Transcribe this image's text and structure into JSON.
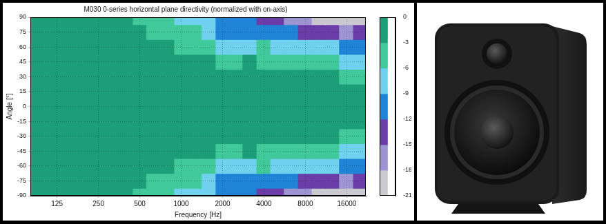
{
  "chart_data": {
    "type": "heatmap",
    "title": "M030 0-series horizontal plane directivity (normalized with on-axis)",
    "x_label": "Frequency [Hz]",
    "y_label": "Angle [°]",
    "log": "x",
    "grid": true,
    "xlim": [
      80,
      22000
    ],
    "xticks": [
      125,
      250,
      500,
      1000,
      2000,
      4000,
      8000,
      16000
    ],
    "ylim": [
      -90,
      90
    ],
    "yticks": [
      -90,
      -75,
      -60,
      -45,
      -30,
      -15,
      0,
      15,
      30,
      45,
      60,
      75,
      90
    ],
    "cells": {
      "frequencies": [
        80,
        100,
        125,
        160,
        200,
        250,
        315,
        400,
        500,
        630,
        800,
        1000,
        1250,
        1600,
        2000,
        2500,
        3150,
        4000,
        5000,
        6300,
        8000,
        10000,
        12500,
        16000,
        20000
      ],
      "angles": [
        -90,
        -75,
        -60,
        -45,
        -30,
        -15,
        0,
        15,
        30,
        45,
        60,
        75,
        90
      ],
      "values": [
        [
          -1.0,
          -1.2,
          -1.5,
          -1.7,
          -2.0,
          -2.2,
          -2.5,
          -2.8,
          -3.2,
          -4.0,
          -5.0,
          -6.5,
          -7.5,
          -8.5,
          -11.0,
          -11.5,
          -11.8,
          -12.5,
          -13.5,
          -15.5,
          -16.5,
          -18.0,
          -19.5,
          -20.5,
          -19.0
        ],
        [
          -0.8,
          -0.8,
          -1.0,
          -1.0,
          -1.2,
          -1.5,
          -1.8,
          -2.2,
          -2.8,
          -3.2,
          -4.0,
          -4.5,
          -5.5,
          -6.5,
          -9.5,
          -10.0,
          -9.5,
          -9.2,
          -10.0,
          -11.0,
          -12.0,
          -13.0,
          -14.0,
          -15.5,
          -13.5
        ],
        [
          -0.5,
          -0.5,
          -0.5,
          -0.6,
          -0.7,
          -0.8,
          -1.0,
          -1.2,
          -1.5,
          -2.0,
          -2.5,
          -3.2,
          -3.8,
          -4.5,
          -6.2,
          -6.5,
          -6.0,
          -5.8,
          -6.2,
          -6.5,
          -7.0,
          -7.5,
          -8.5,
          -9.5,
          -9.0
        ],
        [
          -0.3,
          -0.3,
          -0.3,
          -0.3,
          -0.4,
          -0.4,
          -0.5,
          -0.6,
          -0.8,
          -1.0,
          -1.2,
          -1.5,
          -2.0,
          -2.5,
          -3.2,
          -3.5,
          -2.8,
          -3.2,
          -3.5,
          -3.8,
          -4.2,
          -4.5,
          -5.0,
          -6.2,
          -6.2
        ],
        [
          -0.1,
          -0.1,
          -0.1,
          -0.1,
          -0.2,
          -0.2,
          -0.2,
          -0.3,
          -0.3,
          -0.4,
          -0.5,
          -0.6,
          -0.8,
          -1.0,
          -1.2,
          -1.3,
          -1.2,
          -1.4,
          -1.6,
          -1.8,
          -2.0,
          -2.3,
          -2.6,
          -3.2,
          -3.2
        ],
        [
          0,
          0,
          0,
          0,
          0,
          0,
          -0.1,
          -0.1,
          -0.1,
          -0.1,
          -0.1,
          -0.2,
          -0.2,
          -0.3,
          -0.3,
          -0.3,
          -0.3,
          -0.4,
          -0.4,
          -0.5,
          -0.5,
          -0.6,
          -0.7,
          -0.8,
          -0.8
        ],
        [
          0,
          0,
          0,
          0,
          0,
          0,
          0,
          0,
          0,
          0,
          0,
          0,
          0,
          0,
          0,
          0,
          0,
          0,
          0,
          0,
          0,
          0,
          0,
          0,
          0
        ],
        [
          0,
          0,
          0,
          0,
          0,
          0,
          -0.1,
          -0.1,
          -0.1,
          -0.1,
          -0.1,
          -0.2,
          -0.2,
          -0.3,
          -0.3,
          -0.3,
          -0.3,
          -0.4,
          -0.4,
          -0.5,
          -0.5,
          -0.6,
          -0.7,
          -0.8,
          -0.8
        ],
        [
          -0.1,
          -0.1,
          -0.1,
          -0.1,
          -0.2,
          -0.2,
          -0.2,
          -0.3,
          -0.3,
          -0.4,
          -0.5,
          -0.6,
          -0.8,
          -1.0,
          -1.2,
          -1.3,
          -1.2,
          -1.4,
          -1.6,
          -1.8,
          -2.0,
          -2.3,
          -2.6,
          -3.2,
          -3.2
        ],
        [
          -0.3,
          -0.3,
          -0.3,
          -0.3,
          -0.4,
          -0.4,
          -0.5,
          -0.6,
          -0.8,
          -1.0,
          -1.2,
          -1.5,
          -2.0,
          -2.5,
          -3.2,
          -3.5,
          -2.8,
          -3.2,
          -3.5,
          -3.8,
          -4.2,
          -4.5,
          -5.0,
          -6.2,
          -6.2
        ],
        [
          -0.5,
          -0.5,
          -0.5,
          -0.6,
          -0.7,
          -0.8,
          -1.0,
          -1.2,
          -1.5,
          -2.0,
          -2.5,
          -3.2,
          -3.8,
          -4.5,
          -6.2,
          -6.5,
          -6.0,
          -5.8,
          -6.2,
          -6.5,
          -7.0,
          -7.5,
          -8.5,
          -9.5,
          -9.0
        ],
        [
          -0.8,
          -0.8,
          -1.0,
          -1.0,
          -1.2,
          -1.5,
          -1.8,
          -2.2,
          -2.8,
          -3.2,
          -4.0,
          -4.5,
          -5.5,
          -6.5,
          -9.5,
          -10.0,
          -9.5,
          -9.2,
          -10.0,
          -11.0,
          -12.0,
          -13.0,
          -14.0,
          -15.5,
          -13.5
        ],
        [
          -1.0,
          -1.2,
          -1.5,
          -1.7,
          -2.0,
          -2.2,
          -2.5,
          -2.8,
          -3.2,
          -4.0,
          -5.0,
          -6.5,
          -7.5,
          -8.5,
          -11.0,
          -11.5,
          -11.8,
          -12.5,
          -13.5,
          -15.5,
          -16.5,
          -18.0,
          -19.5,
          -20.5,
          -19.0
        ]
      ]
    },
    "colorbar": {
      "range": [
        -21,
        0
      ],
      "ticks": [
        0,
        -3,
        -6,
        -9,
        -12,
        -15,
        -18,
        -21
      ],
      "colors": [
        "#1c9f79",
        "#41c89b",
        "#6fd1ee",
        "#1f84d6",
        "#6a3ea6",
        "#9c95d2",
        "#c9c9cf"
      ]
    }
  }
}
